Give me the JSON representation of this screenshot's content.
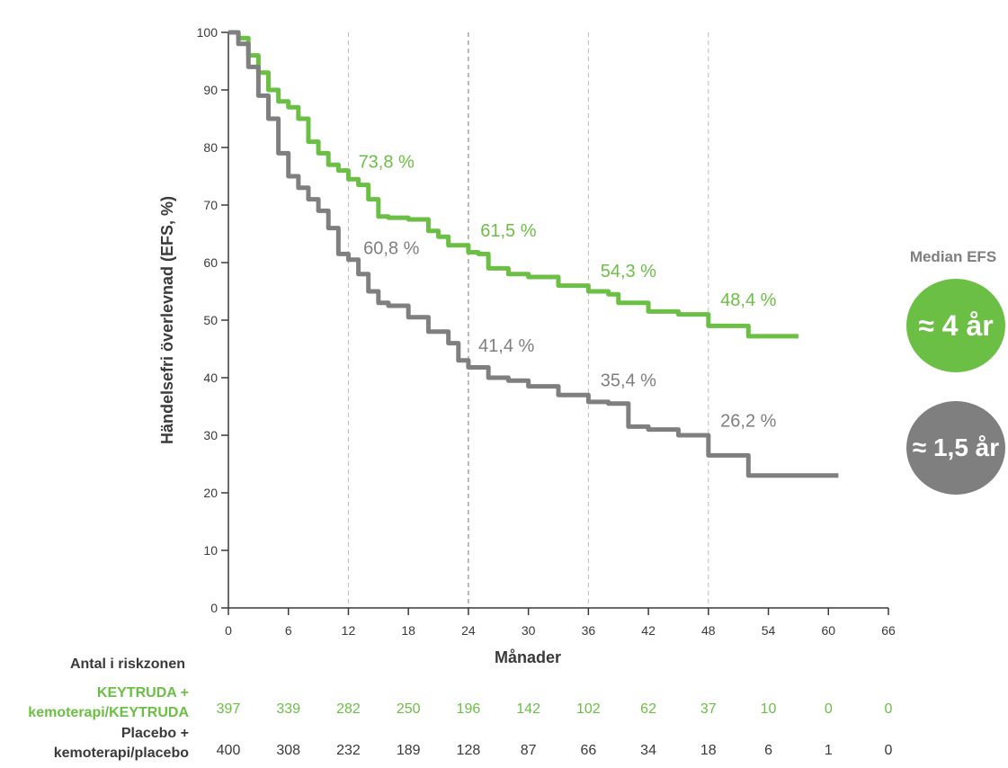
{
  "chart_data": {
    "type": "line",
    "title": "",
    "xlabel": "Månader",
    "ylabel": "Händelsefri överlevnad (EFS, %)",
    "xlim": [
      0,
      66
    ],
    "ylim": [
      0,
      100
    ],
    "x_ticks": [
      0,
      6,
      12,
      18,
      24,
      30,
      36,
      42,
      48,
      54,
      60,
      66
    ],
    "y_ticks": [
      0,
      10,
      20,
      30,
      40,
      50,
      60,
      70,
      80,
      90,
      100
    ],
    "x_tick_labels": [
      "0",
      "6",
      "12",
      "18",
      "24",
      "30",
      "36",
      "42",
      "48",
      "54",
      "60",
      "66"
    ],
    "y_tick_labels": [
      "0",
      "10",
      "20",
      "30",
      "40",
      "50",
      "60",
      "70",
      "80",
      "90",
      "100"
    ],
    "reference_lines_x": [
      12,
      24,
      36,
      48
    ],
    "grid": false,
    "series": [
      {
        "name": "KEYTRUDA + kemoterapi/KEYTRUDA",
        "color": "#6bbf44",
        "x": [
          0,
          1,
          2,
          3,
          4,
          5,
          6,
          7,
          8,
          9,
          10,
          11,
          12,
          13,
          14,
          15,
          16,
          18,
          20,
          21,
          22,
          24,
          25,
          26,
          28,
          30,
          33,
          36,
          38,
          39,
          42,
          45,
          47,
          48,
          50,
          52,
          54,
          56,
          57
        ],
        "y": [
          100,
          99,
          96,
          93,
          90,
          88,
          87,
          85,
          81,
          79,
          77,
          76,
          74.5,
          73.5,
          71,
          68,
          67.8,
          67.5,
          65.5,
          64.5,
          63,
          61.8,
          61.5,
          59,
          58,
          57.5,
          56,
          55,
          54.5,
          53,
          51.5,
          51,
          51,
          49,
          49,
          47.2,
          47.2,
          47.2,
          47.2
        ]
      },
      {
        "name": "Placebo + kemoterapi/placebo",
        "color": "#7f7f80",
        "x": [
          0,
          1,
          2,
          3,
          4,
          5,
          6,
          7,
          8,
          9,
          10,
          11,
          12,
          13,
          14,
          15,
          16,
          18,
          20,
          22,
          23,
          24,
          26,
          28,
          30,
          33,
          36,
          38,
          40,
          42,
          45,
          47,
          48,
          50,
          52,
          54,
          56,
          58,
          60,
          61
        ],
        "y": [
          100,
          98,
          94,
          89,
          85,
          79,
          75,
          73,
          71,
          69,
          66,
          61.5,
          60.5,
          58,
          55,
          53,
          52.5,
          50.5,
          48,
          46,
          43,
          41.8,
          40,
          39.5,
          38.5,
          37,
          35.8,
          35.5,
          31.5,
          31,
          30,
          30,
          26.5,
          26.5,
          23,
          23,
          23,
          23,
          23,
          23
        ]
      }
    ],
    "annotations": [
      {
        "text": "73,8 %",
        "x": 13,
        "y": 76.5,
        "series": 0
      },
      {
        "text": "61,5 %",
        "x": 25.2,
        "y": 64.5,
        "series": 0
      },
      {
        "text": "54,3 %",
        "x": 37.2,
        "y": 57.5,
        "series": 0
      },
      {
        "text": "48,4 %",
        "x": 49.2,
        "y": 52.5,
        "series": 0
      },
      {
        "text": "60,8 %",
        "x": 13.5,
        "y": 61.5,
        "series": 1
      },
      {
        "text": "41,4 %",
        "x": 25,
        "y": 44.5,
        "series": 1
      },
      {
        "text": "35,4 %",
        "x": 37.2,
        "y": 38.5,
        "series": 1
      },
      {
        "text": "26,2 %",
        "x": 49.2,
        "y": 31.5,
        "series": 1
      }
    ]
  },
  "risk_table": {
    "heading": "Antal i riskzonen",
    "rows": [
      {
        "label_line1": "KEYTRUDA +",
        "label_line2": "kemoterapi/KEYTRUDA",
        "color": "#6bbf44",
        "values": [
          "397",
          "339",
          "282",
          "250",
          "196",
          "142",
          "102",
          "62",
          "37",
          "10",
          "0",
          "0"
        ]
      },
      {
        "label_line1": "Placebo +",
        "label_line2": "kemoterapi/placebo",
        "color": "#3a3a3a",
        "values": [
          "400",
          "308",
          "232",
          "189",
          "128",
          "87",
          "66",
          "34",
          "18",
          "6",
          "1",
          "0"
        ]
      }
    ]
  },
  "median": {
    "title": "Median EFS",
    "green_value": "≈ 4 år",
    "gray_value": "≈ 1,5 år"
  }
}
